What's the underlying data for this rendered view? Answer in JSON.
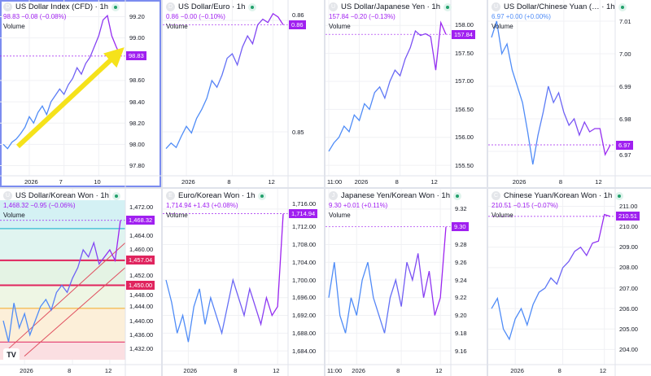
{
  "colors": {
    "line_start": "#4f8cf7",
    "line_end": "#a020f0",
    "price_label": "#a020f0",
    "blue_change": "#4f8cf7",
    "level_red": "#e0245e",
    "arrow": "#f5e21b"
  },
  "panels": [
    {
      "title": "US Dollar Index (CFD) · 1h",
      "icon": "D",
      "change": "98.83  −0.08 (−0.08%)",
      "change_color": "#a020f0",
      "volume": "Volume",
      "price_label": "98.83",
      "price": 98.83,
      "range": [
        97.75,
        99.25
      ],
      "ticks": [
        "99.20",
        "99.00",
        "98.60",
        "98.40",
        "98.20",
        "98.00",
        "97.80"
      ],
      "time_labels": [
        {
          "text": "2026",
          "at": 6
        },
        {
          "text": "7",
          "at": 14
        },
        {
          "text": "10",
          "at": 22
        }
      ],
      "series": [
        98.0,
        97.96,
        98.02,
        98.05,
        98.1,
        98.16,
        98.26,
        98.2,
        98.3,
        98.36,
        98.28,
        98.4,
        98.46,
        98.52,
        98.47,
        98.56,
        98.62,
        98.72,
        98.66,
        98.76,
        98.82,
        98.92,
        99.02,
        99.17,
        99.21,
        99.02,
        98.92,
        98.83
      ]
    },
    {
      "title": "US Dollar/Euro · 1h",
      "icon": "D",
      "change": "0.86  −0.00 (−0.10%)",
      "change_color": "#a020f0",
      "volume": "Volume",
      "price_label": "0.86",
      "price": 0.8596,
      "range": [
        0.8465,
        0.8608
      ],
      "ticks": [
        "0.86",
        "0.85"
      ],
      "tick_values": [
        0.86,
        0.85
      ],
      "time_labels": [
        {
          "text": "2026",
          "at": 4
        },
        {
          "text": "8",
          "at": 13
        },
        {
          "text": "12",
          "at": 21
        }
      ],
      "series": [
        0.8485,
        0.849,
        0.8486,
        0.8496,
        0.8505,
        0.8499,
        0.8512,
        0.852,
        0.853,
        0.8546,
        0.854,
        0.8551,
        0.8566,
        0.857,
        0.856,
        0.8576,
        0.8586,
        0.8579,
        0.8596,
        0.8601,
        0.8598,
        0.8606,
        0.8603,
        0.8596
      ]
    },
    {
      "title": "US Dollar/Japanese Yen · 1h",
      "icon": "U",
      "change": "157.84  −0.20 (−0.13%)",
      "change_color": "#a020f0",
      "volume": "Volume",
      "price_label": "157.84",
      "price": 157.84,
      "range": [
        155.4,
        158.25
      ],
      "ticks": [
        "158.00",
        "157.50",
        "157.00",
        "156.50",
        "156.00",
        "155.50"
      ],
      "time_labels": [
        {
          "text": "11:00",
          "at": 0
        },
        {
          "text": "2026",
          "at": 6
        },
        {
          "text": "8",
          "at": 14
        },
        {
          "text": "12",
          "at": 21
        }
      ],
      "series": [
        155.75,
        155.9,
        156.0,
        156.2,
        156.1,
        156.4,
        156.3,
        156.6,
        156.5,
        156.8,
        156.9,
        156.7,
        157.0,
        157.2,
        157.1,
        157.4,
        157.6,
        157.9,
        157.82,
        157.85,
        157.8,
        157.2,
        158.05,
        157.84
      ]
    },
    {
      "title": "US Dollar/Chinese Yuan (… · 1h",
      "icon": "U",
      "change": "6.97  +0.00 (+0.00%)",
      "change_color": "#4f8cf7",
      "volume": "Volume",
      "price_label": "6.97",
      "price": 6.972,
      "range": [
        6.964,
        7.013
      ],
      "ticks": [
        "7.01",
        "7.00",
        "6.99",
        "6.98",
        "6.97"
      ],
      "time_labels": [
        {
          "text": "2026",
          "at": 5
        },
        {
          "text": "8",
          "at": 14
        },
        {
          "text": "12",
          "at": 21
        }
      ],
      "series": [
        7.005,
        7.01,
        7.0,
        7.003,
        6.995,
        6.99,
        6.985,
        6.976,
        6.966,
        6.975,
        6.982,
        6.99,
        6.985,
        6.988,
        6.982,
        6.978,
        6.98,
        6.975,
        6.979,
        6.976,
        6.977,
        6.977,
        6.969,
        6.972
      ]
    },
    {
      "title": "US Dollar/Korean Won · 1h",
      "icon": "U",
      "change": "1,468.32  −0.95 (−0.06%)",
      "change_color": "#a020f0",
      "volume": "Volume",
      "price_label": "1,468.32",
      "price": 1468.32,
      "range": [
        1429,
        1474
      ],
      "ticks": [
        "1,472.00",
        "1,464.00",
        "1,460.00",
        "1,452.00",
        "1,448.00",
        "1,444.00",
        "1,440.00",
        "1,436.00",
        "1,432.00"
      ],
      "tick_values": [
        1472,
        1464,
        1460,
        1452,
        1448,
        1444,
        1440,
        1436,
        1432
      ],
      "levels": [
        {
          "label": "1,457.04",
          "value": 1457.04
        },
        {
          "label": "1,450.00",
          "value": 1450.0
        }
      ],
      "time_labels": [
        {
          "text": "2026",
          "at": 4
        },
        {
          "text": "8",
          "at": 13
        },
        {
          "text": "12",
          "at": 20
        }
      ],
      "series": [
        1440,
        1434,
        1445,
        1438,
        1442,
        1436,
        1440,
        1444,
        1446,
        1443,
        1448,
        1450,
        1448,
        1452,
        1455,
        1460,
        1458,
        1462,
        1456,
        1458,
        1460,
        1457,
        1468.32
      ]
    },
    {
      "title": "Euro/Korean Won · 1h",
      "icon": "E",
      "change": "1,714.94  +1.43 (+0.08%)",
      "change_color": "#a020f0",
      "volume": "Volume",
      "price_label": "1,714.94",
      "price": 1714.94,
      "range": [
        1682,
        1718
      ],
      "ticks": [
        "1,716.00",
        "1,712.00",
        "1,708.00",
        "1,704.00",
        "1,700.00",
        "1,696.00",
        "1,692.00",
        "1,688.00",
        "1,684.00"
      ],
      "time_labels": [
        {
          "text": "2026",
          "at": 4
        },
        {
          "text": "8",
          "at": 13
        },
        {
          "text": "12",
          "at": 20
        }
      ],
      "series": [
        1700,
        1695,
        1688,
        1692,
        1686,
        1694,
        1698,
        1690,
        1696,
        1692,
        1688,
        1694,
        1700,
        1696,
        1692,
        1698,
        1694,
        1690,
        1696,
        1692,
        1694,
        1714.94
      ]
    },
    {
      "title": "Japanese Yen/Korean Won · 1h",
      "icon": "J",
      "change": "9.30  +0.01 (+0.11%)",
      "change_color": "#a020f0",
      "volume": "Volume",
      "price_label": "9.30",
      "price": 9.3,
      "range": [
        9.15,
        9.33
      ],
      "ticks": [
        "9.32",
        "9.28",
        "9.26",
        "9.24",
        "9.22",
        "9.20",
        "9.18",
        "9.16"
      ],
      "time_labels": [
        {
          "text": "11:00",
          "at": 0
        },
        {
          "text": "2026",
          "at": 5
        },
        {
          "text": "8",
          "at": 13
        },
        {
          "text": "12",
          "at": 20
        }
      ],
      "series": [
        9.22,
        9.26,
        9.2,
        9.18,
        9.22,
        9.2,
        9.24,
        9.26,
        9.22,
        9.2,
        9.18,
        9.22,
        9.24,
        9.21,
        9.26,
        9.24,
        9.27,
        9.22,
        9.25,
        9.2,
        9.22,
        9.3
      ]
    },
    {
      "title": "Chinese Yuan/Korean Won · 1h",
      "icon": "C",
      "change": "210.51  −0.15 (−0.07%)",
      "change_color": "#a020f0",
      "volume": "Volume",
      "price_label": "210.51",
      "price": 210.51,
      "range": [
        203.5,
        211.3
      ],
      "ticks": [
        "211.00",
        "210.00",
        "209.00",
        "208.00",
        "207.00",
        "206.00",
        "205.00",
        "204.00"
      ],
      "time_labels": [
        {
          "text": "2026",
          "at": 4
        },
        {
          "text": "8",
          "at": 12
        },
        {
          "text": "12",
          "at": 19
        }
      ],
      "series": [
        206,
        206.5,
        205,
        204.5,
        205.5,
        206,
        205.2,
        206.2,
        206.8,
        207,
        207.5,
        207.2,
        208,
        208.3,
        208.8,
        209,
        208.6,
        209.2,
        209.3,
        210.6,
        210.51
      ]
    }
  ],
  "logo": "TV"
}
